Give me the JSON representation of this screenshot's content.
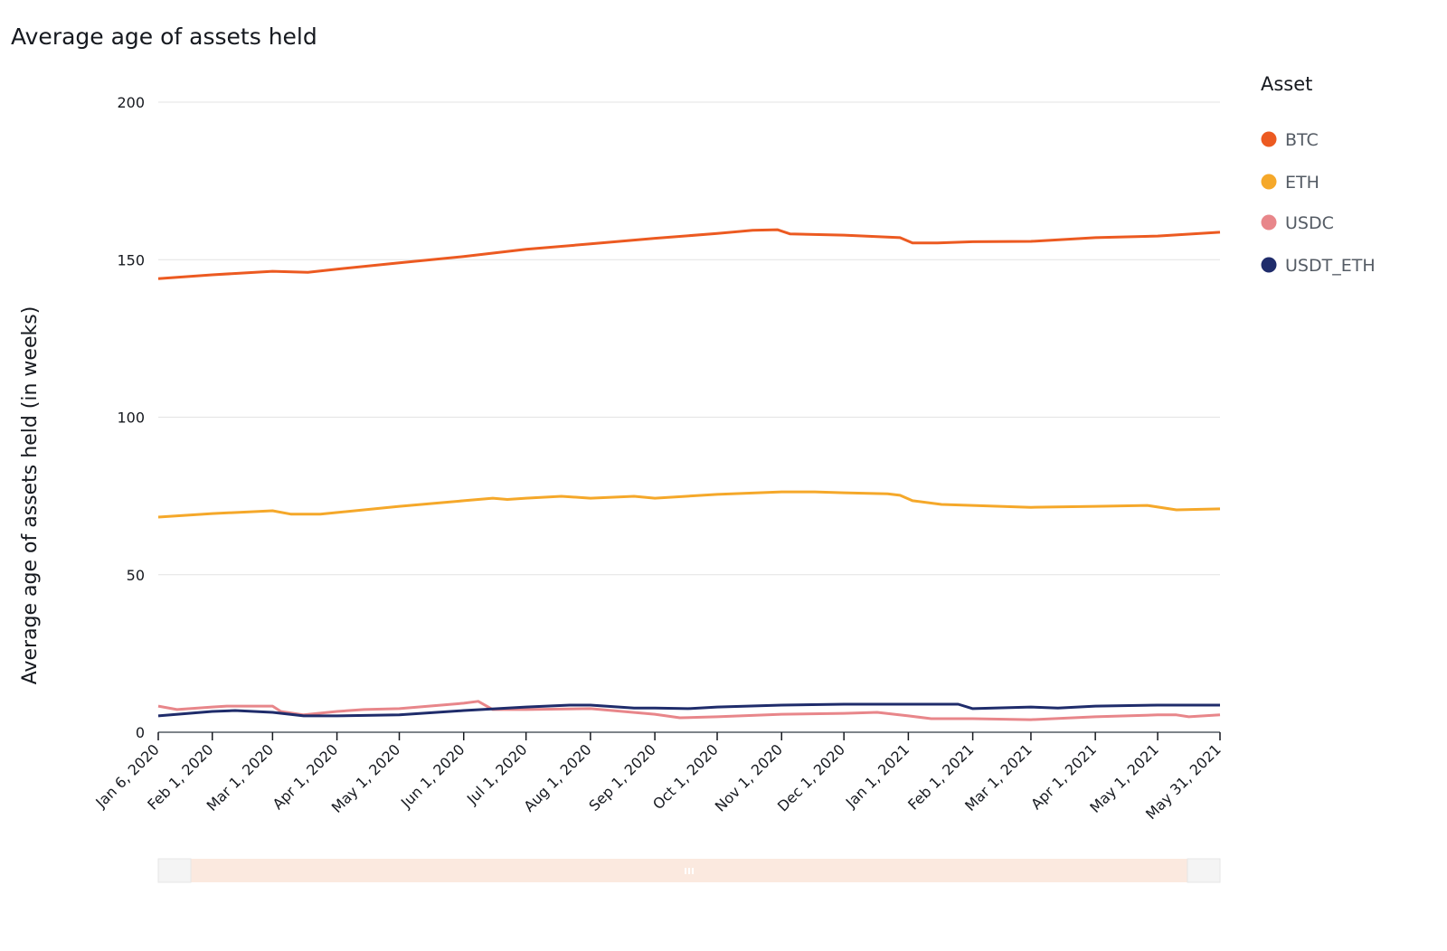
{
  "chart_data": {
    "type": "line",
    "title": "Average age of assets held",
    "xlabel": "",
    "ylabel": "Average age of assets held (in weeks)",
    "ylim": [
      0,
      200
    ],
    "yticks": [
      0,
      50,
      100,
      150,
      200
    ],
    "xlim": [
      "2020-01-06",
      "2021-05-31"
    ],
    "xticks": [
      {
        "date": "2020-01-06",
        "label": "Jan 6, 2020"
      },
      {
        "date": "2020-02-01",
        "label": "Feb 1, 2020"
      },
      {
        "date": "2020-03-01",
        "label": "Mar 1, 2020"
      },
      {
        "date": "2020-04-01",
        "label": "Apr 1, 2020"
      },
      {
        "date": "2020-05-01",
        "label": "May 1, 2020"
      },
      {
        "date": "2020-06-01",
        "label": "Jun 1, 2020"
      },
      {
        "date": "2020-07-01",
        "label": "Jul 1, 2020"
      },
      {
        "date": "2020-08-01",
        "label": "Aug 1, 2020"
      },
      {
        "date": "2020-09-01",
        "label": "Sep 1, 2020"
      },
      {
        "date": "2020-10-01",
        "label": "Oct 1, 2020"
      },
      {
        "date": "2020-11-01",
        "label": "Nov 1, 2020"
      },
      {
        "date": "2020-12-01",
        "label": "Dec 1, 2020"
      },
      {
        "date": "2021-01-01",
        "label": "Jan 1, 2021"
      },
      {
        "date": "2021-02-01",
        "label": "Feb 1, 2021"
      },
      {
        "date": "2021-03-01",
        "label": "Mar 1, 2021"
      },
      {
        "date": "2021-04-01",
        "label": "Apr 1, 2021"
      },
      {
        "date": "2021-05-01",
        "label": "May 1, 2021"
      },
      {
        "date": "2021-05-31",
        "label": "May 31, 2021"
      }
    ],
    "grid": true,
    "legend": {
      "title": "Asset",
      "placement": "right"
    },
    "series": [
      {
        "name": "BTC",
        "color": "#ec5a21",
        "points": [
          [
            "2020-01-06",
            144
          ],
          [
            "2020-02-01",
            145.2
          ],
          [
            "2020-03-01",
            146.3
          ],
          [
            "2020-03-18",
            146
          ],
          [
            "2020-04-01",
            147
          ],
          [
            "2020-05-01",
            149
          ],
          [
            "2020-06-01",
            151
          ],
          [
            "2020-07-01",
            153.3
          ],
          [
            "2020-08-01",
            155
          ],
          [
            "2020-09-01",
            156.8
          ],
          [
            "2020-10-01",
            158.3
          ],
          [
            "2020-10-18",
            159.3
          ],
          [
            "2020-10-30",
            159.5
          ],
          [
            "2020-11-05",
            158.2
          ],
          [
            "2020-12-01",
            157.8
          ],
          [
            "2020-12-28",
            157
          ],
          [
            "2021-01-03",
            155.3
          ],
          [
            "2021-01-15",
            155.3
          ],
          [
            "2021-02-01",
            155.7
          ],
          [
            "2021-03-01",
            155.8
          ],
          [
            "2021-04-01",
            157
          ],
          [
            "2021-05-01",
            157.5
          ],
          [
            "2021-05-31",
            158.7
          ]
        ]
      },
      {
        "name": "ETH",
        "color": "#f5a82a",
        "points": [
          [
            "2020-01-06",
            68.3
          ],
          [
            "2020-02-01",
            69.4
          ],
          [
            "2020-03-01",
            70.3
          ],
          [
            "2020-03-10",
            69.2
          ],
          [
            "2020-03-24",
            69.2
          ],
          [
            "2020-05-01",
            71.7
          ],
          [
            "2020-06-01",
            73.5
          ],
          [
            "2020-06-15",
            74.3
          ],
          [
            "2020-06-22",
            73.9
          ],
          [
            "2020-07-01",
            74.3
          ],
          [
            "2020-07-18",
            74.9
          ],
          [
            "2020-08-01",
            74.3
          ],
          [
            "2020-08-22",
            74.9
          ],
          [
            "2020-09-01",
            74.3
          ],
          [
            "2020-10-01",
            75.5
          ],
          [
            "2020-11-01",
            76.3
          ],
          [
            "2020-11-17",
            76.3
          ],
          [
            "2020-12-01",
            76
          ],
          [
            "2020-12-22",
            75.7
          ],
          [
            "2020-12-28",
            75.2
          ],
          [
            "2021-01-03",
            73.5
          ],
          [
            "2021-01-17",
            72.3
          ],
          [
            "2021-02-01",
            72
          ],
          [
            "2021-03-01",
            71.4
          ],
          [
            "2021-04-01",
            71.7
          ],
          [
            "2021-04-26",
            72
          ],
          [
            "2021-05-10",
            70.6
          ],
          [
            "2021-05-31",
            70.9
          ]
        ]
      },
      {
        "name": "USDC",
        "color": "#e8868a",
        "points": [
          [
            "2020-01-06",
            8.3
          ],
          [
            "2020-01-15",
            7.2
          ],
          [
            "2020-02-01",
            8
          ],
          [
            "2020-02-08",
            8.3
          ],
          [
            "2020-03-01",
            8.3
          ],
          [
            "2020-03-05",
            6.6
          ],
          [
            "2020-03-16",
            5.5
          ],
          [
            "2020-04-01",
            6.6
          ],
          [
            "2020-04-14",
            7.2
          ],
          [
            "2020-05-01",
            7.5
          ],
          [
            "2020-06-01",
            9.2
          ],
          [
            "2020-06-08",
            9.8
          ],
          [
            "2020-06-15",
            7.2
          ],
          [
            "2020-07-01",
            7.2
          ],
          [
            "2020-08-01",
            7.5
          ],
          [
            "2020-09-01",
            5.7
          ],
          [
            "2020-09-13",
            4.6
          ],
          [
            "2020-10-01",
            4.9
          ],
          [
            "2020-11-01",
            5.7
          ],
          [
            "2020-12-01",
            6
          ],
          [
            "2020-12-17",
            6.3
          ],
          [
            "2021-01-01",
            5.2
          ],
          [
            "2021-01-12",
            4.3
          ],
          [
            "2021-02-01",
            4.3
          ],
          [
            "2021-03-01",
            4
          ],
          [
            "2021-04-01",
            4.9
          ],
          [
            "2021-05-01",
            5.5
          ],
          [
            "2021-05-10",
            5.5
          ],
          [
            "2021-05-16",
            4.9
          ],
          [
            "2021-05-31",
            5.5
          ]
        ]
      },
      {
        "name": "USDT_ETH",
        "color": "#1f2c6b",
        "points": [
          [
            "2020-01-06",
            5.2
          ],
          [
            "2020-02-01",
            6.6
          ],
          [
            "2020-02-12",
            6.9
          ],
          [
            "2020-03-01",
            6.3
          ],
          [
            "2020-03-16",
            5.2
          ],
          [
            "2020-04-01",
            5.2
          ],
          [
            "2020-05-01",
            5.5
          ],
          [
            "2020-06-01",
            6.9
          ],
          [
            "2020-07-01",
            8
          ],
          [
            "2020-07-22",
            8.6
          ],
          [
            "2020-08-01",
            8.6
          ],
          [
            "2020-08-22",
            7.7
          ],
          [
            "2020-09-01",
            7.7
          ],
          [
            "2020-09-17",
            7.5
          ],
          [
            "2020-10-01",
            8
          ],
          [
            "2020-11-01",
            8.6
          ],
          [
            "2020-12-01",
            8.9
          ],
          [
            "2021-01-01",
            8.9
          ],
          [
            "2021-01-25",
            8.9
          ],
          [
            "2021-02-01",
            7.5
          ],
          [
            "2021-03-01",
            8
          ],
          [
            "2021-03-14",
            7.7
          ],
          [
            "2021-04-01",
            8.3
          ],
          [
            "2021-05-01",
            8.6
          ],
          [
            "2021-05-31",
            8.6
          ]
        ]
      }
    ]
  }
}
